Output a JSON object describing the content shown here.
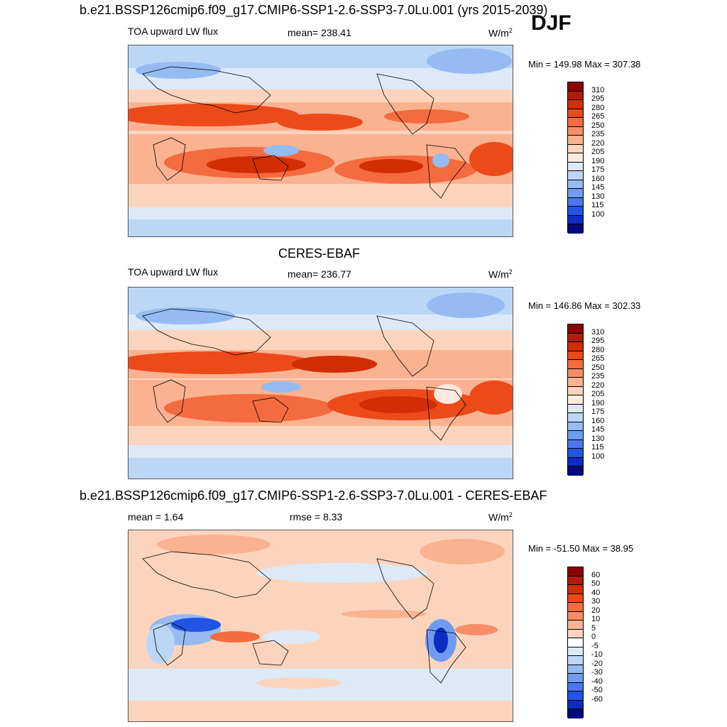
{
  "season": "DJF",
  "panels": [
    {
      "id": "model",
      "title": "b.e21.BSSP126cmip6.f09_g17.CMIP6-SSP1-2.6-SSP3-7.0Lu.001 (yrs 2015-2039)",
      "left_label": "TOA upward LW flux",
      "center_label": "mean= 238.41",
      "units": "W/m",
      "units_sup": "2",
      "minmax": "Min = 149.98 Max = 307.38",
      "levels": [
        "310",
        "295",
        "280",
        "265",
        "250",
        "235",
        "220",
        "205",
        "190",
        "175",
        "160",
        "145",
        "130",
        "115",
        "100"
      ],
      "colors": [
        "#8b0000",
        "#b11b0a",
        "#d22d05",
        "#ec4a19",
        "#f36b3e",
        "#f78d68",
        "#fab291",
        "#fcd4bd",
        "#fdeadd",
        "#dce9f8",
        "#bcd6f6",
        "#96bbf2",
        "#6f9bf0",
        "#4a78ec",
        "#2353e5",
        "#0b2dc3",
        "#000a7a"
      ]
    },
    {
      "id": "obs",
      "title": "CERES-EBAF",
      "left_label": "TOA upward LW flux",
      "center_label": "mean= 236.77",
      "units": "W/m",
      "units_sup": "2",
      "minmax": "Min = 146.86 Max = 302.33",
      "levels": [
        "310",
        "295",
        "280",
        "265",
        "250",
        "235",
        "220",
        "205",
        "190",
        "175",
        "160",
        "145",
        "130",
        "115",
        "100"
      ],
      "colors": [
        "#8b0000",
        "#b11b0a",
        "#d22d05",
        "#ec4a19",
        "#f36b3e",
        "#f78d68",
        "#fab291",
        "#fcd4bd",
        "#fdeadd",
        "#dce9f8",
        "#bcd6f6",
        "#96bbf2",
        "#6f9bf0",
        "#4a78ec",
        "#2353e5",
        "#0b2dc3",
        "#000a7a"
      ]
    },
    {
      "id": "diff",
      "title": "b.e21.BSSP126cmip6.f09_g17.CMIP6-SSP1-2.6-SSP3-7.0Lu.001 - CERES-EBAF",
      "left_label": "mean =   1.64",
      "center_label": "rmse =   8.33",
      "units": "W/m",
      "units_sup": "2",
      "minmax": "Min = -51.50 Max =  38.95",
      "levels": [
        "60",
        "50",
        "40",
        "30",
        "20",
        "10",
        "5",
        "0",
        "-5",
        "-10",
        "-20",
        "-30",
        "-40",
        "-50",
        "-60"
      ],
      "colors": [
        "#8b0000",
        "#b11b0a",
        "#d22d05",
        "#ec4a19",
        "#f36b3e",
        "#f78d68",
        "#fab291",
        "#fcd4bd",
        "#ffffff",
        "#dce9f8",
        "#bcd6f6",
        "#96bbf2",
        "#6f9bf0",
        "#4a78ec",
        "#2353e5",
        "#0b2dc3",
        "#000a7a"
      ]
    }
  ]
}
